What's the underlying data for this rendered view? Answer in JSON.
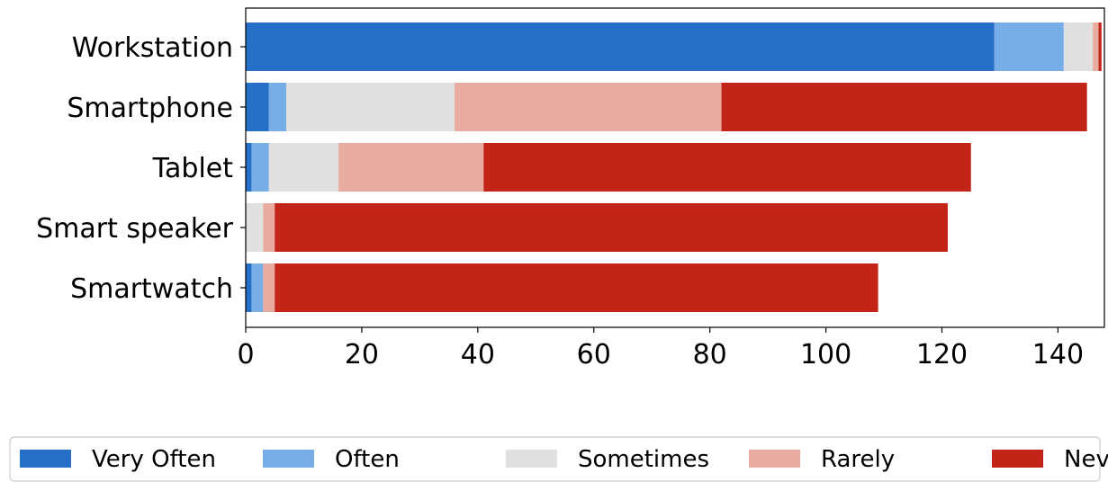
{
  "chart_data": {
    "type": "bar",
    "orientation": "horizontal",
    "stacked": true,
    "categories": [
      "Workstation",
      "Smartphone",
      "Tablet",
      "Smart speaker",
      "Smartwatch"
    ],
    "series": [
      {
        "name": "Very Often",
        "color": "#2570c6",
        "values": [
          129,
          4,
          1,
          0,
          1
        ]
      },
      {
        "name": "Often",
        "color": "#78aee8",
        "values": [
          12,
          3,
          3,
          0,
          2
        ]
      },
      {
        "name": "Sometimes",
        "color": "#e0e0e0",
        "values": [
          5,
          29,
          12,
          3,
          0
        ]
      },
      {
        "name": "Rarely",
        "color": "#e8aba0",
        "values": [
          1,
          46,
          25,
          2,
          2
        ]
      },
      {
        "name": "Never",
        "color": "#c22418",
        "values": [
          0.5,
          63,
          84,
          116,
          104
        ]
      }
    ],
    "xticks": [
      "0",
      "20",
      "40",
      "60",
      "80",
      "100",
      "120",
      "140"
    ],
    "xlim": [
      0,
      148
    ],
    "title": "",
    "xlabel": "",
    "ylabel": "",
    "grid": false,
    "legend_position": "bottom"
  }
}
